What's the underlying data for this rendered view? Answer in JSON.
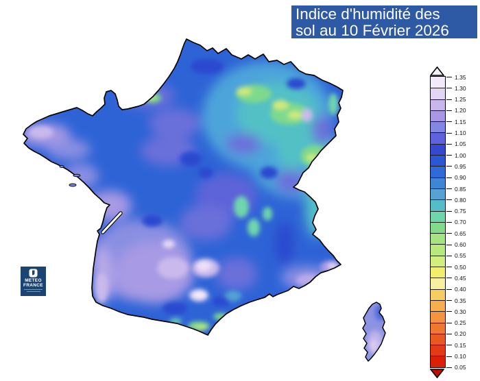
{
  "title": {
    "line1": "Indice d'humidité des",
    "line2": "sol au 10 Février 2026",
    "bg_color": "#2d59a5",
    "text_color": "#ffffff"
  },
  "logo": {
    "line1": "METEO",
    "line2": "FRANCE",
    "bg_color": "#1c4473"
  },
  "map": {
    "region": "France",
    "base_color": "#2e63d6",
    "outline_color": "#000000"
  },
  "legend": {
    "ticks": [
      "1.35",
      "1.30",
      "1.25",
      "1.20",
      "1.15",
      "1.10",
      "1.05",
      "1.00",
      "0.95",
      "0.90",
      "0.85",
      "0.80",
      "0.75",
      "0.70",
      "0.65",
      "0.60",
      "0.55",
      "0.50",
      "0.45",
      "0.40",
      "0.35",
      "0.30",
      "0.25",
      "0.20",
      "0.15",
      "0.10",
      "0.05"
    ],
    "segment_colors": [
      "#f2eafa",
      "#e3d6f4",
      "#c9b7ec",
      "#a897e3",
      "#8287e1",
      "#5e63d9",
      "#3448d0",
      "#2b57d5",
      "#2e6bd8",
      "#3e85d3",
      "#54a3d3",
      "#55bdc7",
      "#6fd6ac",
      "#82da8c",
      "#a6e381",
      "#b9e97b",
      "#d4ee7e",
      "#f2ee6d",
      "#f7f0a1",
      "#f6cd61",
      "#f7af4d",
      "#f4943f",
      "#ef7830",
      "#e95a22",
      "#e23b15",
      "#d92108"
    ],
    "arrow_top_color": "#f6f0fc",
    "arrow_bottom_color": "#c30b01"
  }
}
